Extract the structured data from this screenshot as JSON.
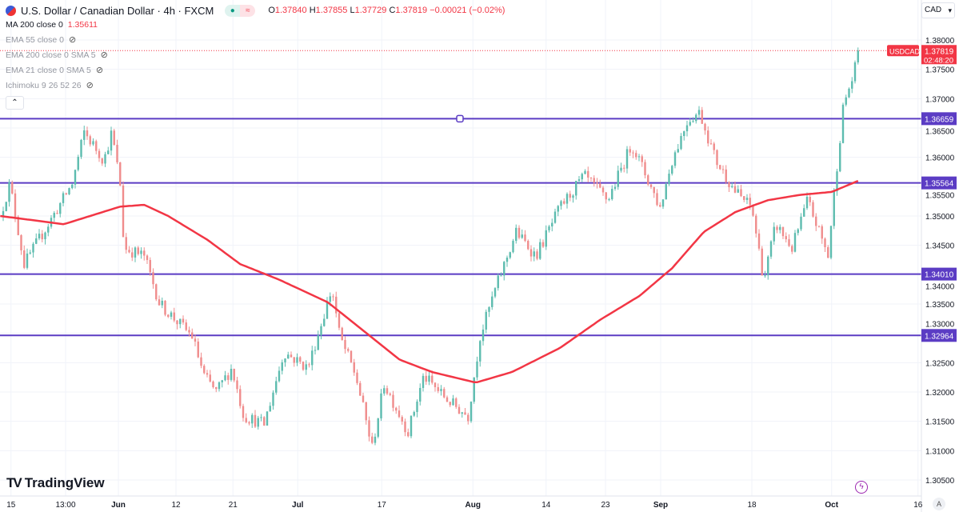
{
  "header": {
    "symbol_title": "U.S. Dollar / Canadian Dollar · 4h · FXCM",
    "ohlc": {
      "o_label": "O",
      "o": "1.37840",
      "h_label": "H",
      "h": "1.37855",
      "l_label": "L",
      "l": "1.37729",
      "c_label": "C",
      "c": "1.37819",
      "change": "−0.00021 (−0.02%)"
    },
    "status_icons": [
      "market-open-dot",
      "wave-icon"
    ]
  },
  "indicators": [
    {
      "label": "MA 200 close 0",
      "value": "1.35611",
      "hidden": false
    },
    {
      "label": "EMA 55 close 0",
      "hidden": true
    },
    {
      "label": "EMA 200 close 0 SMA 5",
      "hidden": true
    },
    {
      "label": "EMA 21 close 0 SMA 5",
      "hidden": true
    },
    {
      "label": "Ichimoku 9 26 52 26",
      "hidden": true
    }
  ],
  "currency": "CAD",
  "brand": "TradingView",
  "auto_label": "A",
  "colors": {
    "up": "#5dbcaf",
    "down": "#f08c8c",
    "ma": "#f23645",
    "level": "#5b3cc4",
    "last": "#f23645"
  },
  "chart_data": {
    "type": "candlestick",
    "title": "U.S. Dollar / Canadian Dollar · 4h · FXCM",
    "x_unit": "days from Jun 1",
    "ylim": [
      1.3032,
      1.3848
    ],
    "xlim": [
      -19.7,
      137
    ],
    "y_ticks": [
      "1.30500",
      "1.31000",
      "1.31500",
      "1.32000",
      "1.32500",
      "1.33000",
      "1.33500",
      "1.34000",
      "1.34500",
      "1.35000",
      "1.35500",
      "1.36000",
      "1.36500",
      "1.37000",
      "1.37500",
      "1.38000"
    ],
    "x_ticks": [
      {
        "label": "15",
        "d": -17.9
      },
      {
        "label": "13:00",
        "d": -8.8
      },
      {
        "label": "Jun",
        "d": 0,
        "bold": true
      },
      {
        "label": "12",
        "d": 9.6
      },
      {
        "label": "21",
        "d": 19.1
      },
      {
        "label": "Jul",
        "d": 29.9,
        "bold": true
      },
      {
        "label": "17",
        "d": 43.9
      },
      {
        "label": "Aug",
        "d": 59.1,
        "bold": true
      },
      {
        "label": "14",
        "d": 71.3
      },
      {
        "label": "23",
        "d": 81.2
      },
      {
        "label": "Sep",
        "d": 90.4,
        "bold": true
      },
      {
        "label": "18",
        "d": 105.6
      },
      {
        "label": "Oct",
        "d": 118.9,
        "bold": true
      },
      {
        "label": "16",
        "d": 133.3
      }
    ],
    "price_path": [
      [
        -19.7,
        1.35
      ],
      [
        -18.1,
        1.3555
      ],
      [
        -15.7,
        1.3418
      ],
      [
        -11.7,
        1.3486
      ],
      [
        -7.7,
        1.3555
      ],
      [
        -5.7,
        1.3643
      ],
      [
        -2.4,
        1.3595
      ],
      [
        -1.1,
        1.3643
      ],
      [
        0.5,
        1.3541
      ],
      [
        0.9,
        1.3445
      ],
      [
        4.3,
        1.3432
      ],
      [
        6.9,
        1.335
      ],
      [
        12.3,
        1.3295
      ],
      [
        14.3,
        1.3227
      ],
      [
        16.3,
        1.32
      ],
      [
        18.9,
        1.3241
      ],
      [
        20.9,
        1.3159
      ],
      [
        24.3,
        1.3145
      ],
      [
        27.6,
        1.3268
      ],
      [
        31.6,
        1.3241
      ],
      [
        35.6,
        1.3377
      ],
      [
        36.9,
        1.3295
      ],
      [
        39.6,
        1.3227
      ],
      [
        42.3,
        1.3105
      ],
      [
        44.3,
        1.3214
      ],
      [
        48.3,
        1.3132
      ],
      [
        50.9,
        1.3227
      ],
      [
        54.9,
        1.3186
      ],
      [
        58.3,
        1.3159
      ],
      [
        60.3,
        1.3295
      ],
      [
        62.9,
        1.3377
      ],
      [
        66.3,
        1.3473
      ],
      [
        69.6,
        1.3432
      ],
      [
        73.6,
        1.3514
      ],
      [
        77.6,
        1.3568
      ],
      [
        81.6,
        1.3527
      ],
      [
        85.6,
        1.3623
      ],
      [
        90.3,
        1.3514
      ],
      [
        92.3,
        1.3595
      ],
      [
        94.9,
        1.3664
      ],
      [
        96.9,
        1.3677
      ],
      [
        99.6,
        1.3595
      ],
      [
        102.9,
        1.3541
      ],
      [
        105.6,
        1.3514
      ],
      [
        107.6,
        1.3391
      ],
      [
        109.6,
        1.3486
      ],
      [
        112.3,
        1.3445
      ],
      [
        114.9,
        1.3527
      ],
      [
        118.3,
        1.3432
      ],
      [
        119.6,
        1.3568
      ],
      [
        120.9,
        1.3691
      ],
      [
        122.3,
        1.3732
      ],
      [
        123.6,
        1.37819
      ]
    ],
    "ma200": [
      [
        -19.7,
        1.35
      ],
      [
        -9.1,
        1.3486
      ],
      [
        0.3,
        1.3516
      ],
      [
        4.3,
        1.3519
      ],
      [
        8.3,
        1.35
      ],
      [
        14.9,
        1.3459
      ],
      [
        20.3,
        1.3418
      ],
      [
        26.9,
        1.3391
      ],
      [
        34.9,
        1.3353
      ],
      [
        40.3,
        1.3309
      ],
      [
        46.9,
        1.3255
      ],
      [
        52.3,
        1.3234
      ],
      [
        59.6,
        1.3216
      ],
      [
        65.6,
        1.3234
      ],
      [
        73.6,
        1.3275
      ],
      [
        80.3,
        1.3323
      ],
      [
        86.9,
        1.3364
      ],
      [
        92.3,
        1.3411
      ],
      [
        97.6,
        1.3473
      ],
      [
        102.9,
        1.3507
      ],
      [
        108.3,
        1.3527
      ],
      [
        113.6,
        1.3536
      ],
      [
        118.9,
        1.3541
      ],
      [
        123.6,
        1.35611
      ]
    ],
    "horizontal_levels": [
      {
        "price": 1.36659,
        "label": "1.36659"
      },
      {
        "price": 1.35564,
        "label": "1.35564"
      },
      {
        "price": 1.3401,
        "label": "1.34010"
      },
      {
        "price": 1.32964,
        "label": "1.32964"
      }
    ],
    "last_price": {
      "symbol": "USDCAD",
      "price": 1.37819,
      "label": "1.37819",
      "countdown": "02:48:20"
    }
  }
}
